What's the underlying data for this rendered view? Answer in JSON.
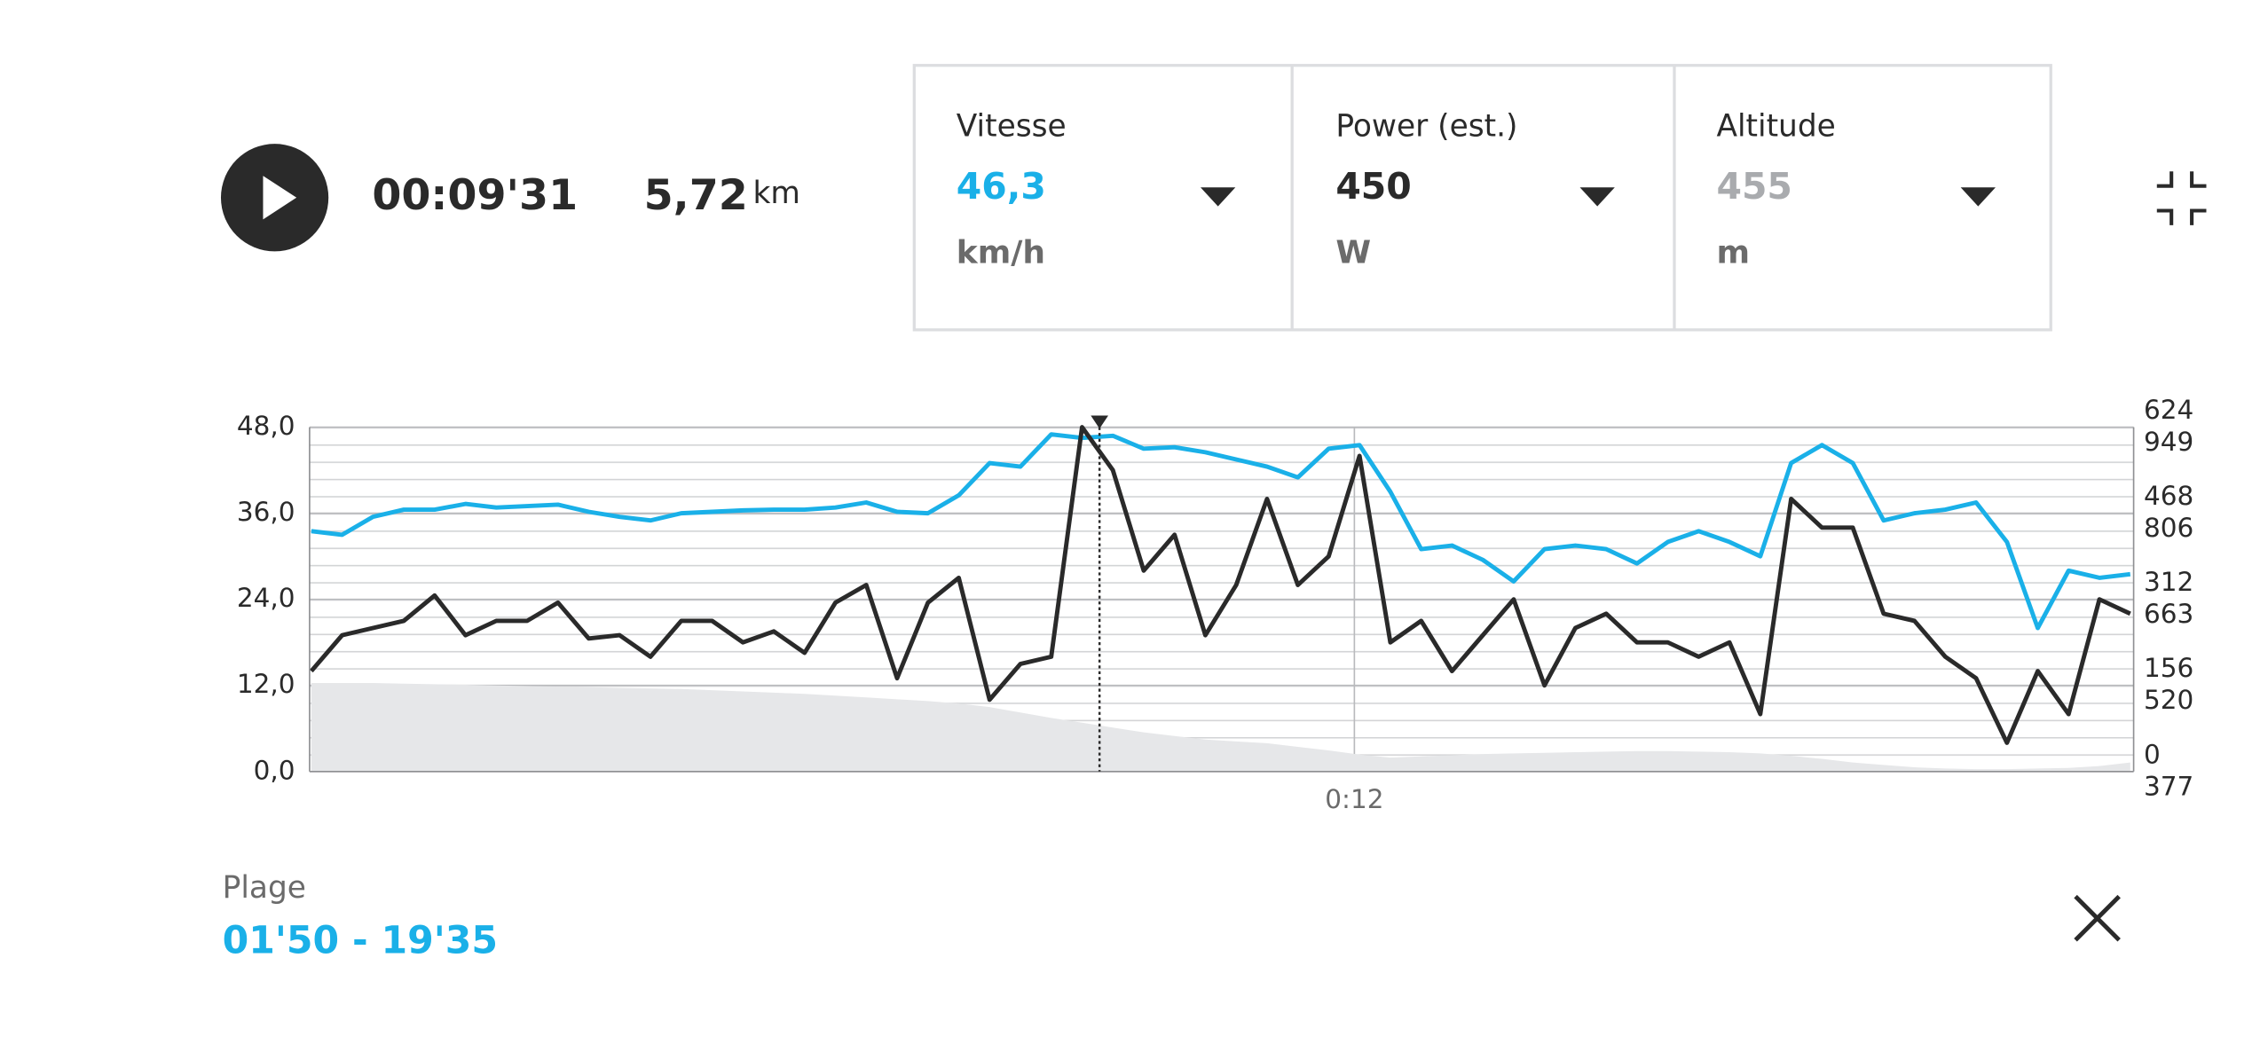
{
  "player": {
    "time": "00:09'31",
    "distance": "5,72",
    "distance_unit": "km"
  },
  "metrics": [
    {
      "value": "46,3",
      "unit": "km/h",
      "color": "#1ab0e8"
    },
    {
      "value": "450",
      "unit": "W",
      "color": "#2a2a2a"
    },
    {
      "value": "455",
      "unit": "m",
      "color": "#a9abae"
    }
  ],
  "chart_data": {
    "type": "line",
    "x": [
      1.85,
      2.15,
      2.45,
      2.75,
      3.05,
      3.35,
      3.65,
      3.95,
      4.25,
      4.55,
      4.85,
      5.15,
      5.45,
      5.75,
      6.05,
      6.35,
      6.65,
      6.95,
      7.25,
      7.55,
      7.85,
      8.15,
      8.45,
      8.75,
      9.05,
      9.35,
      9.65,
      9.95,
      10.25,
      10.55,
      10.85,
      11.15,
      11.45,
      11.75,
      12.05,
      12.35,
      12.65,
      12.95,
      13.25,
      13.55,
      13.85,
      14.15,
      14.45,
      14.75,
      15.05,
      15.35,
      15.65,
      15.95,
      16.25,
      16.55,
      16.85,
      17.15,
      17.45,
      17.75,
      18.05,
      18.35,
      18.65,
      18.95,
      19.25,
      19.55
    ],
    "xlim": [
      1.833,
      19.583
    ],
    "xticks": [
      {
        "value": 12,
        "label": "0:12"
      }
    ],
    "ylim": [
      0,
      48
    ],
    "yticks": [
      {
        "value": 0,
        "label": "0,0"
      },
      {
        "value": 12,
        "label": "12,0"
      },
      {
        "value": 24,
        "label": "24,0"
      },
      {
        "value": 36,
        "label": "36,0"
      },
      {
        "value": 48,
        "label": "48,0"
      }
    ],
    "y2lim": [
      0,
      624
    ],
    "y2ticks": [
      0,
      156,
      312,
      468,
      624
    ],
    "y3lim": [
      377,
      949
    ],
    "y3ticks": [
      377,
      520,
      663,
      806,
      949
    ],
    "cursor_x": 9.52,
    "grid": true,
    "series": [
      {
        "name": "Vitesse",
        "color": "#1ab0e8",
        "values": [
          33.5,
          33,
          35.5,
          36.5,
          36.5,
          37.3,
          36.8,
          37,
          37.2,
          36.2,
          35.5,
          35,
          36,
          36.2,
          36.4,
          36.5,
          36.5,
          36.8,
          37.5,
          36.2,
          36,
          38.5,
          43,
          42.5,
          47,
          46.5,
          46.8,
          45,
          45.2,
          44.5,
          43.5,
          42.5,
          41,
          45,
          45.5,
          39,
          31,
          31.5,
          29.5,
          26.5,
          31,
          31.5,
          31,
          29,
          32,
          33.5,
          32,
          30,
          43,
          45.5,
          43,
          35,
          36,
          36.5,
          37.5,
          32,
          20,
          28,
          27,
          27.5
        ]
      },
      {
        "name": "Power (est.)",
        "color": "#2a2a2a",
        "axis": "y2",
        "values": [
          182,
          247,
          260,
          273,
          319,
          247,
          273,
          273,
          306,
          241,
          247,
          208,
          273,
          273,
          234,
          254,
          215,
          306,
          338,
          169,
          306,
          351,
          130,
          195,
          208,
          624,
          546,
          364,
          429,
          247,
          338,
          494,
          338,
          390,
          572,
          234,
          273,
          182,
          247,
          312,
          156,
          260,
          286,
          234,
          234,
          208,
          234,
          104,
          494,
          442,
          442,
          286,
          273,
          208,
          169,
          52,
          182,
          104,
          312,
          286
        ]
      },
      {
        "name": "Altitude",
        "color": "#e6e7e9",
        "axis": "y3",
        "fill": true,
        "values": [
          524,
          524,
          524,
          523,
          522,
          521,
          520,
          519,
          518,
          517,
          516,
          515,
          514,
          512,
          510,
          508,
          506,
          503,
          500,
          497,
          494,
          490,
          484,
          475,
          466,
          458,
          450,
          442,
          436,
          430,
          427,
          424,
          418,
          412,
          405,
          400,
          402,
          404,
          406,
          407,
          408,
          409,
          410,
          411,
          411,
          410,
          409,
          407,
          403,
          398,
          392,
          388,
          384,
          382,
          381,
          381,
          382,
          383,
          386,
          392
        ]
      }
    ]
  },
  "range": {
    "label": "Plage",
    "value": "01'50 - 19'35"
  }
}
